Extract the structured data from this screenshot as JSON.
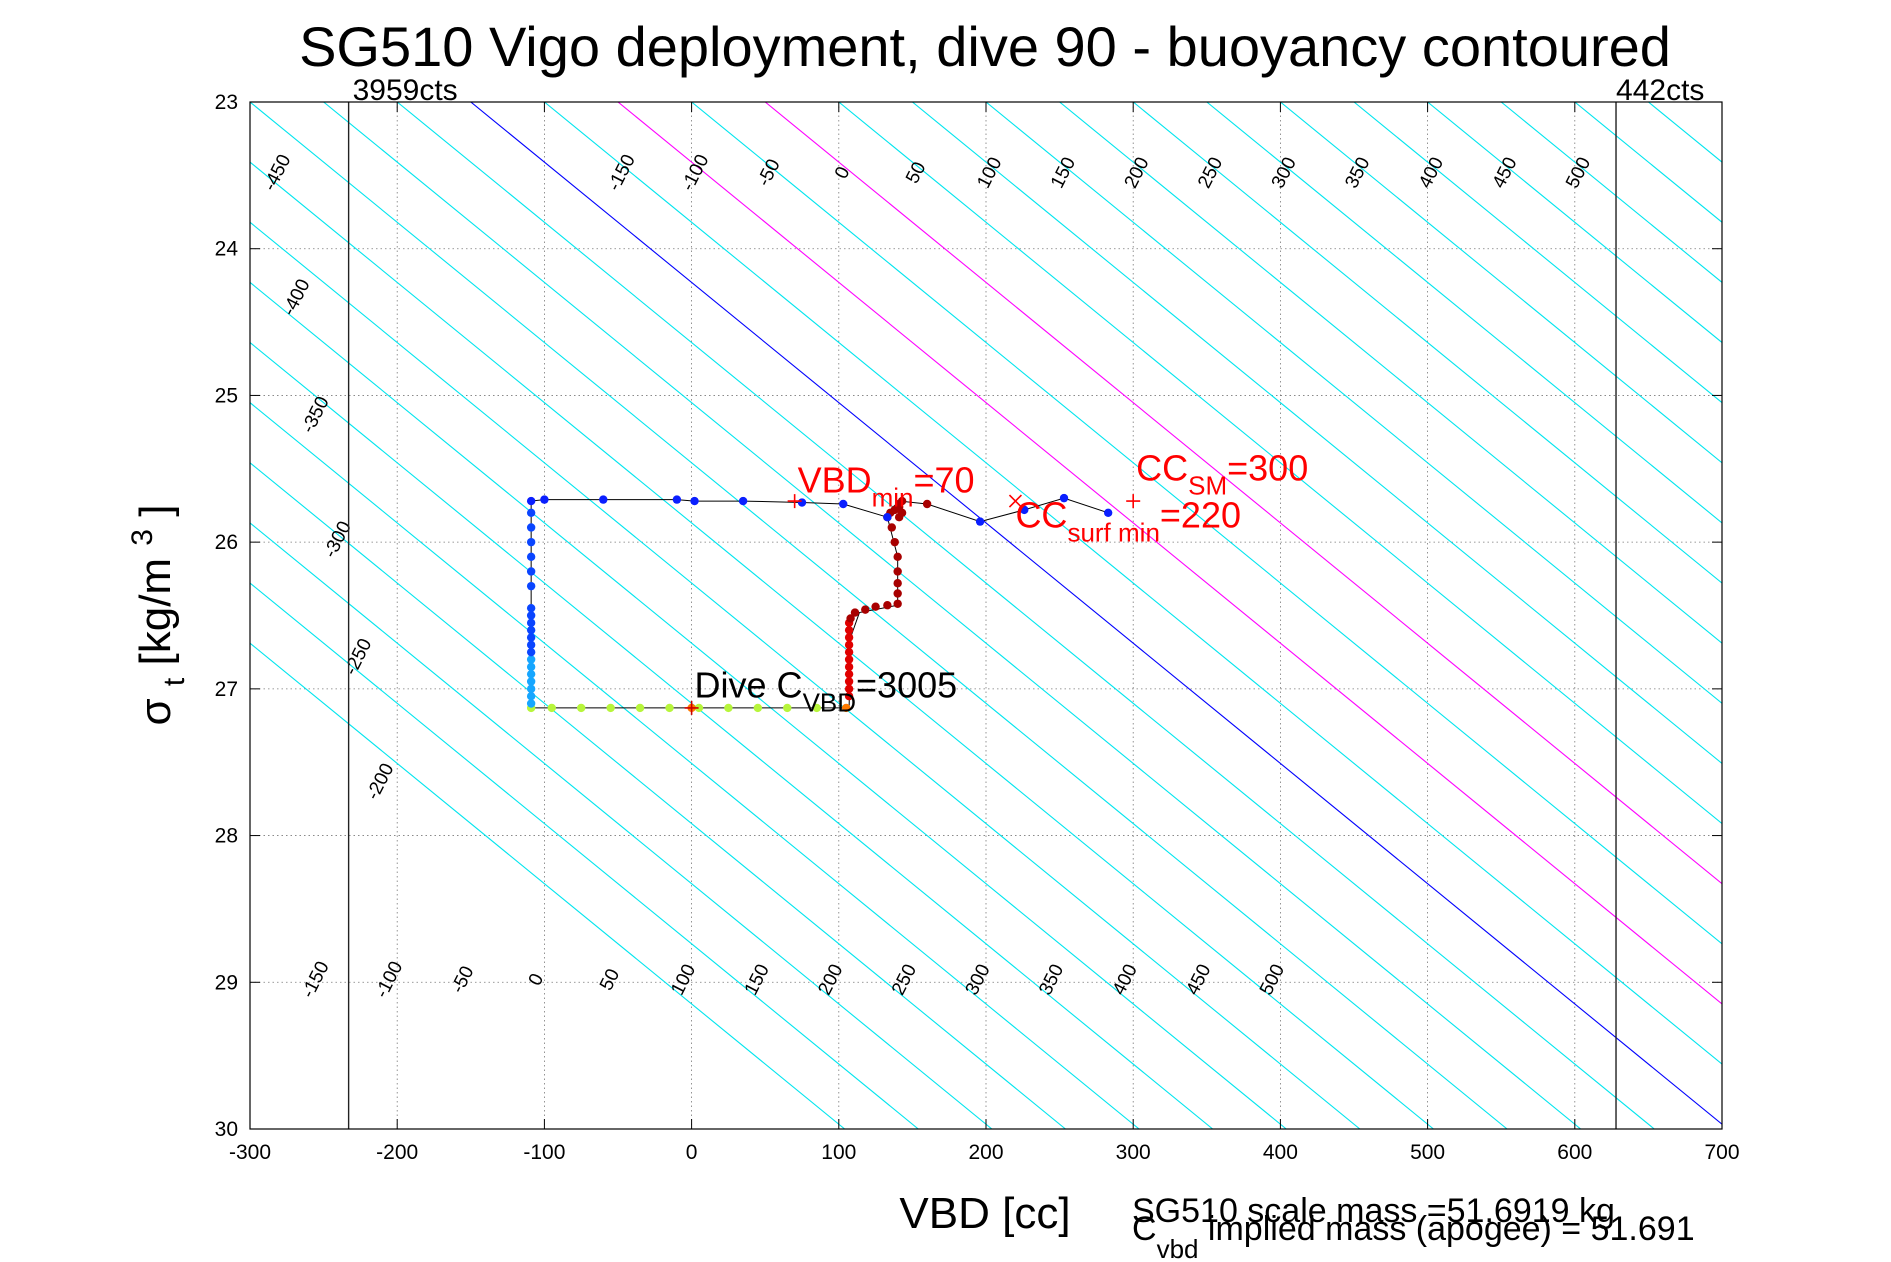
{
  "chart_data": {
    "type": "scatter",
    "title": "SG510 Vigo deployment, dive 90 - buoyancy contoured",
    "xlabel": "VBD [cc]",
    "ylabel_main": "σ",
    "ylabel_sub": "t",
    "ylabel_unit": "[kg/m",
    "ylabel_sup": "3",
    "ylabel_close": "]",
    "xlim": [
      -300,
      700
    ],
    "ylim": [
      23,
      30
    ],
    "y_reversed": true,
    "grid": true,
    "x_ticks": [
      "-300",
      "-200",
      "-100",
      "0",
      "100",
      "200",
      "300",
      "400",
      "500",
      "600",
      "700"
    ],
    "y_ticks": [
      "23",
      "24",
      "25",
      "26",
      "27",
      "28",
      "29",
      "30"
    ],
    "limit_lines": [
      {
        "x": -233,
        "label": "3959cts"
      },
      {
        "x": 628,
        "label": "442cts"
      }
    ],
    "contour_slope_cc_per_sigma": 122,
    "contours_cyan": [
      -450,
      -400,
      -350,
      -300,
      -250,
      -200,
      -150,
      -100,
      -50,
      50,
      150,
      200,
      250,
      300,
      350,
      400,
      450,
      500
    ],
    "contour_zero_blue": 0,
    "contours_magenta": [
      100,
      200
    ],
    "contour_labels_top": [
      {
        "value": "-450",
        "x": -278,
        "y": 23.5
      },
      {
        "value": "-400",
        "x": -265,
        "y": 24.35
      },
      {
        "value": "-350",
        "x": -252,
        "y": 25.15
      },
      {
        "value": "-300",
        "x": -237,
        "y": 26.0
      },
      {
        "value": "-250",
        "x": -223,
        "y": 26.8
      },
      {
        "value": "-200",
        "x": -208,
        "y": 27.65
      },
      {
        "value": "-150",
        "x": -44,
        "y": 23.5
      },
      {
        "value": "-100",
        "x": 6,
        "y": 23.5
      },
      {
        "value": "-50",
        "x": 56,
        "y": 23.5
      },
      {
        "value": "0",
        "x": 106,
        "y": 23.5
      },
      {
        "value": "50",
        "x": 156,
        "y": 23.5
      },
      {
        "value": "100",
        "x": 206,
        "y": 23.5
      },
      {
        "value": "150",
        "x": 256,
        "y": 23.5
      },
      {
        "value": "200",
        "x": 306,
        "y": 23.5
      },
      {
        "value": "250",
        "x": 356,
        "y": 23.5
      },
      {
        "value": "300",
        "x": 406,
        "y": 23.5
      },
      {
        "value": "350",
        "x": 456,
        "y": 23.5
      },
      {
        "value": "400",
        "x": 506,
        "y": 23.5
      },
      {
        "value": "450",
        "x": 556,
        "y": 23.5
      },
      {
        "value": "500",
        "x": 606,
        "y": 23.5
      }
    ],
    "contour_labels_bottom": [
      {
        "value": "-150",
        "x": -252,
        "y": 29.0
      },
      {
        "value": "-100",
        "x": -202,
        "y": 29.0
      },
      {
        "value": "-50",
        "x": -152,
        "y": 29.0
      },
      {
        "value": "0",
        "x": -102,
        "y": 29.0
      },
      {
        "value": "50",
        "x": -52,
        "y": 29.0
      },
      {
        "value": "100",
        "x": -2,
        "y": 29.0
      },
      {
        "value": "150",
        "x": 48,
        "y": 29.0
      },
      {
        "value": "200",
        "x": 98,
        "y": 29.0
      },
      {
        "value": "250",
        "x": 148,
        "y": 29.0
      },
      {
        "value": "300",
        "x": 198,
        "y": 29.0
      },
      {
        "value": "350",
        "x": 248,
        "y": 29.0
      },
      {
        "value": "400",
        "x": 298,
        "y": 29.0
      },
      {
        "value": "450",
        "x": 348,
        "y": 29.0
      },
      {
        "value": "500",
        "x": 398,
        "y": 29.0
      }
    ],
    "profile_line": [
      [
        -109,
        27.13
      ],
      [
        -109,
        25.72
      ],
      [
        -100,
        25.71
      ],
      [
        -60,
        25.71
      ],
      [
        -10,
        25.71
      ],
      [
        2,
        25.72
      ],
      [
        35,
        25.72
      ],
      [
        75,
        25.73
      ],
      [
        103,
        25.74
      ],
      [
        133,
        25.83
      ],
      [
        136,
        25.77
      ],
      [
        141,
        25.72
      ],
      [
        160,
        25.74
      ],
      [
        196,
        25.86
      ],
      [
        226,
        25.78
      ],
      [
        253,
        25.7
      ],
      [
        283,
        25.8
      ]
    ],
    "profile_line_descent_branch": [
      [
        -109,
        27.13
      ],
      [
        107,
        27.13
      ]
    ],
    "profile_line_ascent_branch": [
      [
        107,
        27.13
      ],
      [
        108,
        26.65
      ],
      [
        114,
        26.48
      ],
      [
        140,
        26.43
      ],
      [
        140,
        26.1
      ],
      [
        133,
        25.83
      ]
    ],
    "points": {
      "blue_surface": {
        "color": "#0a1fff",
        "xy": [
          [
            -109,
            25.72
          ],
          [
            -100,
            25.71
          ],
          [
            -60,
            25.71
          ],
          [
            -10,
            25.71
          ],
          [
            2,
            25.72
          ],
          [
            35,
            25.72
          ],
          [
            75,
            25.73
          ],
          [
            103,
            25.74
          ],
          [
            133,
            25.83
          ],
          [
            196,
            25.86
          ],
          [
            226,
            25.78
          ],
          [
            253,
            25.7
          ],
          [
            283,
            25.8
          ]
        ]
      },
      "blue_column": {
        "color": "#0a45ff",
        "x": -109,
        "y": [
          25.8,
          25.9,
          26.0,
          26.1,
          26.2,
          26.3,
          26.45,
          26.5,
          26.55,
          26.6,
          26.65,
          26.7,
          26.75
        ]
      },
      "cyan_column": {
        "color": "#16a6ff",
        "x": -109,
        "y": [
          26.8,
          26.85,
          26.9,
          26.95,
          27.0,
          27.05,
          27.1
        ]
      },
      "yellowgreen_bottom": {
        "color": "#b7f53b",
        "y": 27.13,
        "x": [
          -109,
          -95,
          -75,
          -55,
          -35,
          -15,
          5,
          25,
          45,
          65,
          85
        ]
      },
      "orange_bottom": {
        "color": "#ff7a00",
        "y": 27.13,
        "x": [
          0,
          105
        ]
      },
      "red_ascent": {
        "color": "#e00000",
        "x": 107,
        "y": [
          26.55,
          26.6,
          26.65,
          26.7,
          26.75,
          26.8,
          26.85,
          26.9,
          26.95,
          27.0,
          27.05
        ]
      },
      "darkred_ascent": {
        "color": "#a80000",
        "xy": [
          [
            108,
            26.52
          ],
          [
            111,
            26.48
          ],
          [
            118,
            26.46
          ],
          [
            125,
            26.44
          ],
          [
            133,
            26.43
          ],
          [
            140,
            26.42
          ],
          [
            140,
            26.35
          ],
          [
            140,
            26.28
          ],
          [
            140,
            26.2
          ],
          [
            140,
            26.1
          ],
          [
            138,
            26.0
          ],
          [
            136,
            25.9
          ],
          [
            133,
            25.83
          ],
          [
            135,
            25.8
          ],
          [
            138,
            25.78
          ],
          [
            141,
            25.74
          ],
          [
            143,
            25.72
          ],
          [
            141,
            25.76
          ],
          [
            143,
            25.8
          ],
          [
            141,
            25.83
          ],
          [
            160,
            25.74
          ]
        ]
      }
    },
    "annotations": [
      {
        "id": "vbd_min",
        "marker": "+",
        "color": "#ff0000",
        "x": 70,
        "y": 25.72,
        "main": "VBD",
        "sub": "min",
        "tail": "=70",
        "label_x": 72,
        "label_y": 25.66
      },
      {
        "id": "cc_sm",
        "marker": "+",
        "color": "#ff0000",
        "x": 300,
        "y": 25.72,
        "main": "CC",
        "sub": "SM",
        "tail": "=300",
        "label_x": 302,
        "label_y": 25.58
      },
      {
        "id": "cc_surf_min",
        "marker": "x",
        "color": "#ff0000",
        "x": 220,
        "y": 25.72,
        "main": "CC",
        "sub": "surf min",
        "tail": "=220",
        "label_x": 220,
        "label_y": 25.9
      },
      {
        "id": "dive_c_vbd",
        "marker": "+",
        "color": "#cc0000",
        "x": 0,
        "y": 27.13,
        "main": "Dive C",
        "sub": "VBD",
        "tail": "=3005",
        "label_x": 2,
        "label_y": 27.06,
        "text_color": "#000000"
      }
    ],
    "footnote_mass": "SG510 scale mass =51.6919 kg",
    "footnote_implied_main": "C",
    "footnote_implied_sub": "vbd",
    "footnote_implied_tail": " implied mass (apogee) = 51.691"
  }
}
